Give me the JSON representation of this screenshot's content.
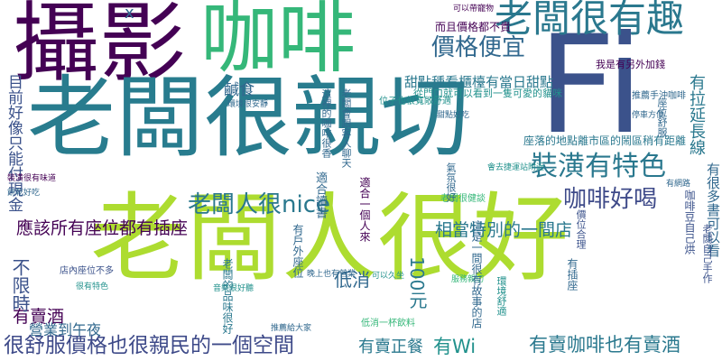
{
  "palette": {
    "dark_purple": "#440154",
    "indigo": "#3b528b",
    "blue_grey": "#3e4a89",
    "teal": "#31688e",
    "dark_teal": "#2a788e",
    "sea": "#21918c",
    "green": "#35b779",
    "light_green": "#5ec962",
    "lime": "#addc30",
    "yellow_green": "#c2df23",
    "yellow": "#fde725",
    "grey_teal": "#287c8e"
  },
  "words": {
    "w1": "攝影",
    "w2": "咖啡",
    "w3": "老闆很親切",
    "w4": "老闆人很好",
    "w5": "Fi",
    "w6": "老闆很有趣",
    "w7": "價格便宜",
    "w8": "裝潢有特色",
    "w9": "老闆人很nice",
    "w10": "咖啡好喝",
    "w11": "應該所有座位都有插座",
    "w12": "很舒服價格也很親民的一個空間",
    "w13": "有賣咖啡也有賣酒",
    "w14": "有賣正餐",
    "w15": "有Wi",
    "w16": "有賣酒",
    "w17": "營業到午夜",
    "w18": "低消",
    "w19": "100元",
    "w20": "相當特別的一間店",
    "w21": "鹹食",
    "w22": "甜點種看櫃檯有當日甜點",
    "w23": "有拉延長線",
    "w24": "座落的地點離市區的鬧區稍有距離",
    "w25": "目前好像只能付現金",
    "w26": "不限時",
    "w27": "x",
    "w28": "而且價格都不貴",
    "w29": "我是有另外加錢",
    "w30": "從門口就可以看到一隻可愛的貓咪",
    "w31": "位子也很寬敞舒適",
    "w32": "這裡的咖啡很香",
    "w33": "老闆會跟客人聊天",
    "w34": "環境很安靜",
    "w35": "店內座位不多",
    "w36": "適合一個人來",
    "w37": "可以帶寵物",
    "w38": "有很多書可以看",
    "w39": "音樂很好聽",
    "w40": "適合讀書",
    "w41": "老闆很健談",
    "w42": "甜點好吃",
    "w43": "氣氛很好",
    "w44": "會去捷運站附近",
    "w45": "停車方便",
    "w46": "座位舒服",
    "w47": "推薦手沖咖啡",
    "w48": "價位合理",
    "w49": "餅乾好吃",
    "w50": "裝潢很有味道",
    "w51": "環境舒適",
    "w52": "服務親切",
    "w53": "有插座",
    "w54": "有網路",
    "w55": "很有特色",
    "w56": "咖啡豆自己烘",
    "w57": "老闆自己手作",
    "w58": "低消一杯飲料",
    "w59": "可以久坐",
    "w60": "有戶外座位",
    "w61": "晚上也有營業",
    "w62": "老闆的品味很好",
    "w63": "這是一間很有故事的店",
    "w64": "推薦給大家"
  }
}
